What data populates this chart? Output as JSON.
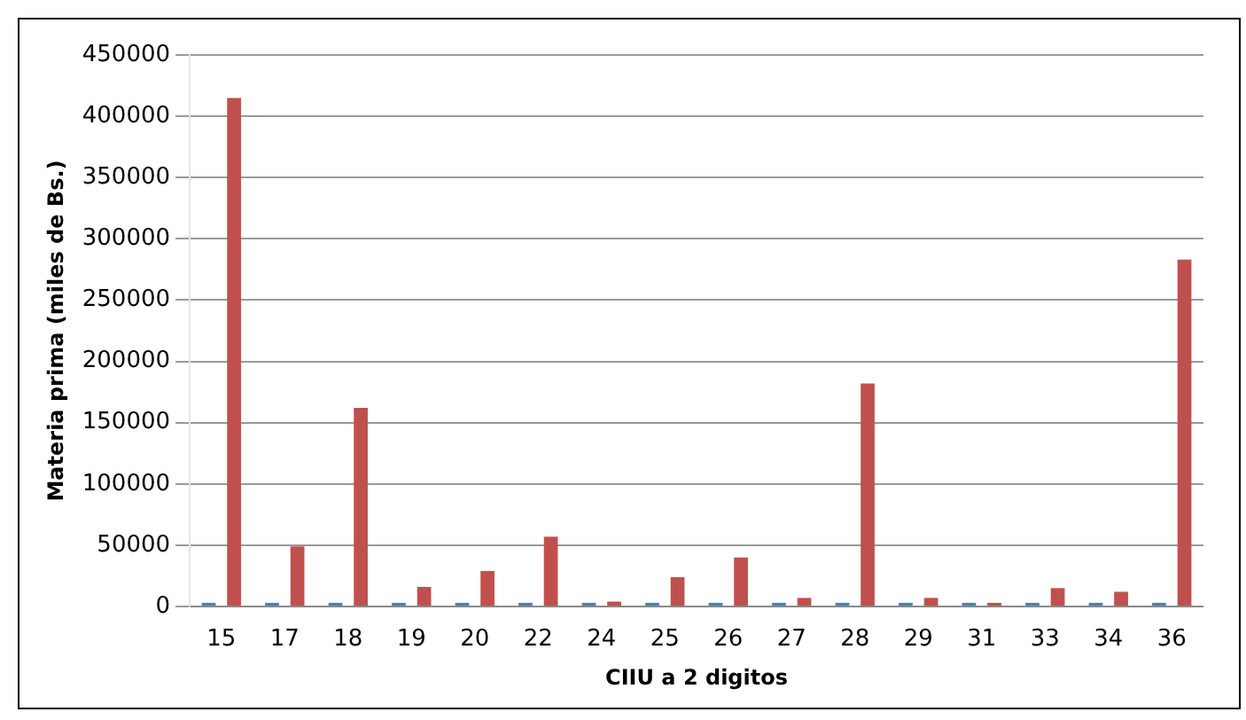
{
  "chart_data": {
    "type": "bar",
    "xlabel": "CIIU a 2 digitos",
    "ylabel": "Materia prima (miles de Bs.)",
    "categories": [
      "15",
      "17",
      "18",
      "19",
      "20",
      "22",
      "24",
      "25",
      "26",
      "27",
      "28",
      "29",
      "31",
      "33",
      "34",
      "36"
    ],
    "series": [
      {
        "color": "#4a7ebb",
        "values": [
          3000,
          3000,
          3000,
          3000,
          3000,
          3000,
          3000,
          3000,
          3000,
          3000,
          3000,
          3000,
          3000,
          3000,
          3000,
          3000
        ]
      },
      {
        "color": "#c0504d",
        "values": [
          415000,
          49000,
          162000,
          16000,
          29000,
          57000,
          4000,
          24000,
          40000,
          7000,
          182000,
          7000,
          3000,
          15000,
          12000,
          283000
        ]
      }
    ],
    "ylim": [
      0,
      450000
    ],
    "yticks": [
      0,
      50000,
      100000,
      150000,
      200000,
      250000,
      300000,
      350000,
      400000,
      450000
    ],
    "grid": "y",
    "legend": false
  }
}
